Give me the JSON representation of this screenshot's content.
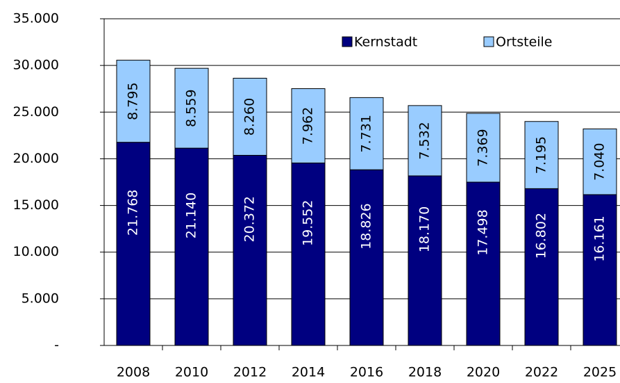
{
  "chart_data": {
    "type": "stacked-bar",
    "categories": [
      "2008",
      "2010",
      "2012",
      "2014",
      "2016",
      "2018",
      "2020",
      "2022",
      "2025"
    ],
    "series": [
      {
        "name": "Kernstadt",
        "color": "#000080",
        "values": [
          21768,
          21140,
          20372,
          19552,
          18826,
          18170,
          17498,
          16802,
          16161
        ],
        "value_labels": [
          "21.768",
          "21.140",
          "20.372",
          "19.552",
          "18.826",
          "18.170",
          "17.498",
          "16.802",
          "16.161"
        ]
      },
      {
        "name": "Ortsteile",
        "color": "#99ccff",
        "values": [
          8795,
          8559,
          8260,
          7962,
          7731,
          7532,
          7369,
          7195,
          7040
        ],
        "value_labels": [
          "8.795",
          "8.559",
          "8.260",
          "7.962",
          "7.731",
          "7.532",
          "7.369",
          "7.195",
          "7.040"
        ]
      }
    ],
    "ylim": [
      0,
      35000
    ],
    "yticks": [
      {
        "value": 0,
        "label": "-"
      },
      {
        "value": 5000,
        "label": "5.000"
      },
      {
        "value": 10000,
        "label": "10.000"
      },
      {
        "value": 15000,
        "label": "15.000"
      },
      {
        "value": 20000,
        "label": "20.000"
      },
      {
        "value": 25000,
        "label": "25.000"
      },
      {
        "value": 30000,
        "label": "30.000"
      },
      {
        "value": 35000,
        "label": "35.000"
      }
    ],
    "grid": true,
    "legend": "top-right"
  }
}
